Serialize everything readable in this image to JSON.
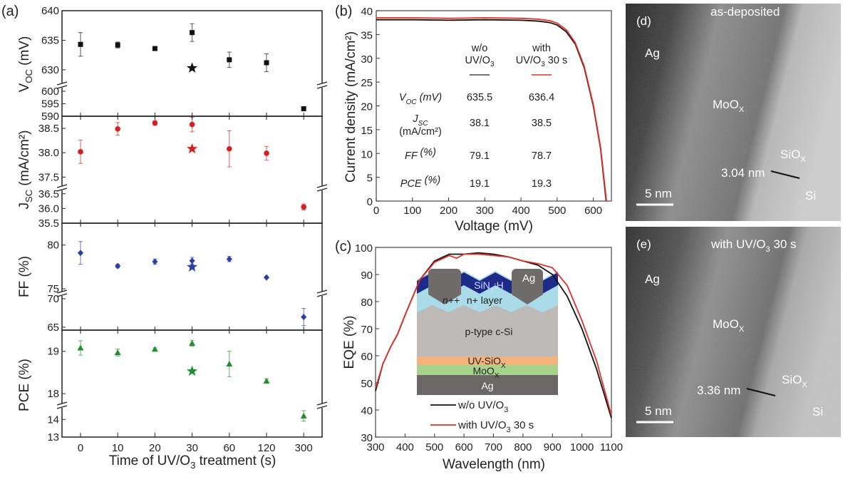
{
  "colors": {
    "voc": "#111111",
    "jsc": "#d42020",
    "ff": "#2a3fa0",
    "pce": "#1f8f2f",
    "wo": "#111111",
    "with": "#e0302a"
  },
  "chart_data": [
    {
      "panel": "(a)",
      "type": "scatter",
      "xlabel": {
        "main": "Time of UV/O",
        "sub": "3",
        "rest": " treatment (s)"
      },
      "categories": [
        "0",
        "10",
        "20",
        "30",
        "60",
        "120",
        "300"
      ],
      "subplots": [
        {
          "ylabel": {
            "main": "V",
            "sub": "OC",
            "rest": " (mV)"
          },
          "marker": "square",
          "color_key": "voc",
          "ylim_segments": [
            [
              627.7,
              640
            ],
            [
              590,
              601.7
            ]
          ],
          "ticks": [
            [
              630,
              635,
              640
            ],
            [
              590,
              595,
              600
            ]
          ],
          "values": [
            634.3,
            634.2,
            633.6,
            636.3,
            631.7,
            631.2,
            593.0
          ],
          "errors": [
            2.0,
            0.5,
            0.2,
            1.5,
            1.3,
            1.5,
            0.3
          ],
          "star": {
            "category": "30",
            "value": 630.3
          }
        },
        {
          "ylabel": {
            "main": "J",
            "sub": "SC",
            "rest": " (mA/cm²)"
          },
          "marker": "circle",
          "color_key": "jsc",
          "ylim_segments": [
            [
              37.3,
              38.75
            ],
            [
              35.5,
              36.64
            ]
          ],
          "ticks": [
            [
              "37.5",
              "38.0",
              "38.5"
            ],
            [
              "35.5",
              "36.0",
              "36.5"
            ]
          ],
          "values": [
            38.02,
            38.49,
            38.61,
            38.58,
            38.08,
            37.99,
            36.05
          ],
          "errors": [
            0.24,
            0.13,
            0.05,
            0.15,
            0.37,
            0.14,
            0.1
          ],
          "star": {
            "category": "30",
            "value": 38.08
          }
        },
        {
          "ylabel": {
            "main": "FF (%)",
            "sub": "",
            "rest": ""
          },
          "marker": "diamond",
          "color_key": "ff",
          "ylim_segments": [
            [
              74.6,
              82.5
            ],
            [
              64.5,
              70.5
            ]
          ],
          "ticks": [
            [
              75,
              80
            ],
            [
              65,
              70
            ]
          ],
          "values": [
            79.1,
            77.6,
            78.1,
            78.2,
            78.4,
            76.3,
            66.8
          ],
          "errors": [
            1.3,
            0.2,
            0.3,
            0.4,
            0.3,
            0.1,
            1.5
          ],
          "star": {
            "category": "30",
            "value": 77.5
          }
        },
        {
          "ylabel": {
            "main": "PCE (%)",
            "sub": "",
            "rest": ""
          },
          "marker": "triangle",
          "color_key": "pce",
          "ylim_segments": [
            [
              17.75,
              19.5
            ],
            [
              13,
              14.7
            ]
          ],
          "ticks": [
            [
              18,
              19
            ],
            [
              13,
              14
            ]
          ],
          "values": [
            19.08,
            18.97,
            19.05,
            19.19,
            18.7,
            18.3,
            14.2
          ],
          "errors": [
            0.17,
            0.08,
            0.03,
            0.07,
            0.3,
            0.05,
            0.3
          ],
          "star": {
            "category": "30",
            "value": 18.53
          }
        }
      ]
    },
    {
      "panel": "(b)",
      "type": "line",
      "xlabel": "Voltage (mV)",
      "ylabel": "Current density (mA/cm²)",
      "xlim": [
        0,
        650
      ],
      "ylim": [
        0,
        40
      ],
      "xticks": [
        0,
        100,
        200,
        300,
        400,
        500,
        600
      ],
      "yticks": [
        0,
        5,
        10,
        15,
        20,
        25,
        30,
        35,
        40
      ],
      "series": [
        {
          "color_key": "wo",
          "x": [
            0,
            100,
            200,
            300,
            400,
            450,
            480,
            500,
            525,
            550,
            575,
            600,
            620,
            635.5
          ],
          "y": [
            38.1,
            38.1,
            38.0,
            38.1,
            38.0,
            37.8,
            37.5,
            37.0,
            35.6,
            33.0,
            28.0,
            20.0,
            11.0,
            0
          ]
        },
        {
          "color_key": "with",
          "x": [
            0,
            100,
            200,
            300,
            400,
            450,
            480,
            500,
            525,
            550,
            575,
            600,
            620,
            636.4
          ],
          "y": [
            38.5,
            38.5,
            38.4,
            38.5,
            38.4,
            38.2,
            37.9,
            37.4,
            36.0,
            33.3,
            28.3,
            20.3,
            11.3,
            0
          ]
        }
      ],
      "table": {
        "headers": [
          {
            "l1": "w/o",
            "l2main": "UV/O",
            "l2sub": "3",
            "l2rest": ""
          },
          {
            "l1": "with",
            "l2main": "UV/O",
            "l2sub": "3",
            "l2rest": " 30 s"
          }
        ],
        "rows": [
          {
            "label": {
              "main": "V",
              "sub": "OC",
              "rest": " (mV)"
            },
            "label2": "",
            "values": [
              "635.5",
              "636.4"
            ]
          },
          {
            "label": {
              "main": "J",
              "sub": "SC",
              "rest": ""
            },
            "label2": "(mA/cm²)",
            "values": [
              "38.1",
              "38.5"
            ]
          },
          {
            "label": {
              "main": "FF",
              "sub": "",
              "rest": " (%)"
            },
            "label2": "",
            "values": [
              "79.1",
              "78.7"
            ]
          },
          {
            "label": {
              "main": "PCE",
              "sub": "",
              "rest": " (%)"
            },
            "label2": "",
            "values": [
              "19.1",
              "19.3"
            ]
          }
        ]
      }
    },
    {
      "panel": "(c)",
      "type": "line",
      "xlabel": "Wavelength (nm)",
      "ylabel": "EQE (%)",
      "xlim": [
        300,
        1100
      ],
      "ylim": [
        30,
        100
      ],
      "xticks": [
        300,
        400,
        500,
        600,
        700,
        800,
        900,
        1000,
        1100
      ],
      "yticks": [
        30,
        40,
        50,
        60,
        70,
        80,
        90,
        100
      ],
      "series": [
        {
          "name": {
            "main": "w/o UV/O",
            "sub": "3",
            "rest": ""
          },
          "color_key": "wo",
          "x": [
            300,
            325,
            350,
            375,
            400,
            450,
            500,
            550,
            600,
            650,
            700,
            750,
            800,
            850,
            900,
            950,
            1000,
            1050,
            1100
          ],
          "y": [
            47,
            57,
            63,
            68,
            75,
            88,
            95,
            97.5,
            97.5,
            98,
            97.5,
            96.5,
            95,
            93.5,
            90,
            82,
            70,
            55,
            37
          ]
        },
        {
          "name": {
            "main": "with UV/O",
            "sub": "3",
            "rest": " 30 s"
          },
          "color_key": "with",
          "x": [
            300,
            325,
            350,
            375,
            400,
            450,
            500,
            550,
            575,
            600,
            650,
            700,
            750,
            800,
            850,
            900,
            950,
            1000,
            1050,
            1100
          ],
          "y": [
            48,
            57,
            63,
            68,
            75,
            88,
            94.5,
            97,
            96,
            97.5,
            97.5,
            97,
            96.5,
            95,
            94,
            92.5,
            86,
            73,
            58,
            38
          ]
        }
      ],
      "inset_layers": {
        "top_contact": "Ag",
        "arc": {
          "main": "SiN",
          "sub": "x",
          "rest": ":H"
        },
        "npp": "n++",
        "np": "n+ layer",
        "base": "p-type c-Si",
        "uvsiox": {
          "main": "UV-SiO",
          "sub": "X",
          "rest": ""
        },
        "moox": {
          "main": "MoO",
          "sub": "X",
          "rest": ""
        },
        "rear": "Ag"
      }
    }
  ],
  "images": [
    {
      "panel": "(d)",
      "caption": "as-deposited",
      "ag": "Ag",
      "moox": {
        "main": "MoO",
        "sub": "X"
      },
      "siox": {
        "main": "SiO",
        "sub": "X"
      },
      "thickness": "3.04 nm",
      "si": "Si",
      "scale": "5 nm"
    },
    {
      "panel": "(e)",
      "caption": {
        "main": "with UV/O",
        "sub": "3",
        "rest": " 30 s"
      },
      "ag": "Ag",
      "moox": {
        "main": "MoO",
        "sub": "X"
      },
      "siox": {
        "main": "SiO",
        "sub": "X"
      },
      "thickness": "3.36 nm",
      "si": "Si",
      "scale": "5 nm"
    }
  ]
}
